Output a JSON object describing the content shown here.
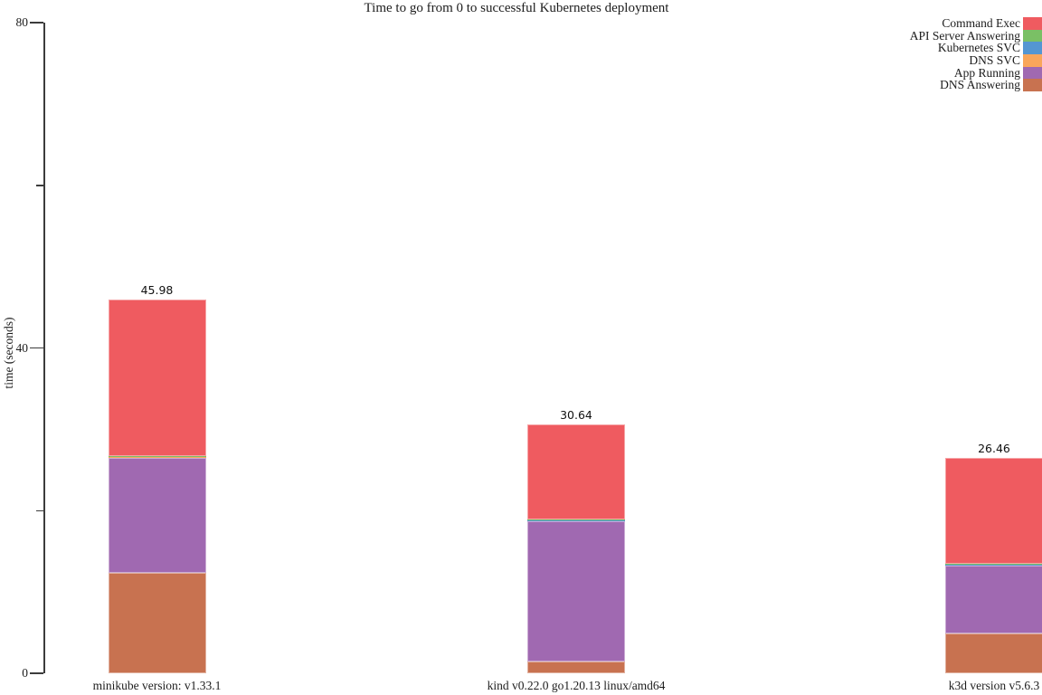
{
  "chart_data": {
    "type": "bar",
    "stacked": true,
    "title": "Time to go from 0 to successful Kubernetes deployment",
    "xlabel": "",
    "ylabel": "time (seconds)",
    "ylim": [
      0,
      80
    ],
    "yticks_labeled": [
      0,
      40,
      80
    ],
    "ytick_labels": [
      "0",
      "40",
      "80"
    ],
    "yticks_unlabeled": [
      20,
      60
    ],
    "grid": false,
    "legend_position": "top-right",
    "categories": [
      "minikube version: v1.33.1",
      "kind v0.22.0 go1.20.13 linux/amd64",
      "k3d version v5.6.3"
    ],
    "bar_totals": [
      45.98,
      30.64,
      26.46
    ],
    "bar_total_labels": [
      "45.98",
      "30.64",
      "26.46"
    ],
    "stack_order_bottom_to_top": [
      "DNS Answering",
      "App Running",
      "DNS SVC",
      "Kubernetes SVC",
      "API Server Answering",
      "Command Exec"
    ],
    "series": [
      {
        "name": "Command Exec",
        "color": "#ef5b60",
        "values": [
          19.28,
          11.7,
          13.0
        ]
      },
      {
        "name": "API Server Answering",
        "color": "#7ac065",
        "values": [
          0.05,
          0.09,
          0.11
        ]
      },
      {
        "name": "Kubernetes SVC",
        "color": "#5496d2",
        "values": [
          0.05,
          0.05,
          0.05
        ]
      },
      {
        "name": "DNS SVC",
        "color": "#f9a65b",
        "values": [
          0.1,
          0.1,
          0.1
        ]
      },
      {
        "name": "App Running",
        "color": "#a069b1",
        "values": [
          14.2,
          17.25,
          8.3
        ]
      },
      {
        "name": "DNS Answering",
        "color": "#c87250",
        "values": [
          12.3,
          1.45,
          4.9
        ]
      }
    ],
    "axis_color": "#3c3c3c"
  }
}
